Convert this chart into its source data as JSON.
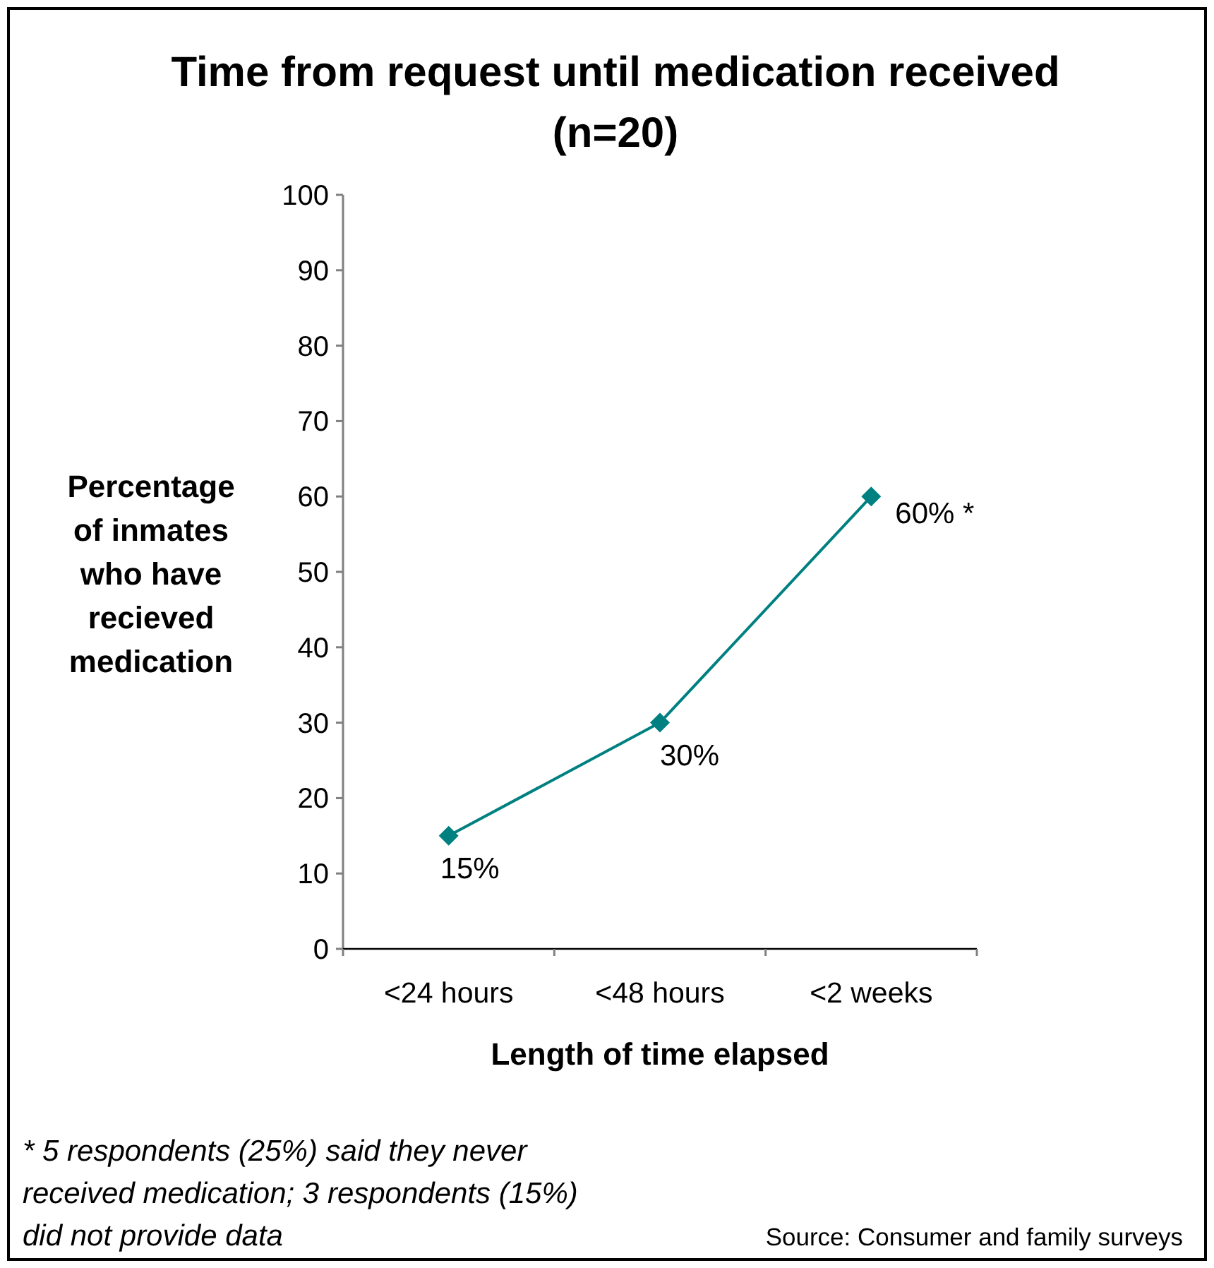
{
  "chart_data": {
    "type": "line",
    "title": "Time from request until medication received (n=20)",
    "xlabel": "Length of time elapsed",
    "ylabel": "Percentage of inmates who have recieved medication",
    "categories": [
      "<24 hours",
      "<48 hours",
      "<2 weeks"
    ],
    "series": [
      {
        "color": "#008080",
        "values": [
          15,
          30,
          60
        ],
        "value_labels": [
          "15%",
          "30%",
          "60% *"
        ]
      }
    ],
    "ylim": [
      0,
      100
    ],
    "yticks": [
      0,
      10,
      20,
      30,
      40,
      50,
      60,
      70,
      80,
      90,
      100
    ],
    "marker": "diamond",
    "line_style": "solid",
    "annotations": [
      "* 5 respondents (25%) said they never received medication; 3 respondents (15%) did not provide data",
      "Source: Consumer and family surveys"
    ]
  }
}
